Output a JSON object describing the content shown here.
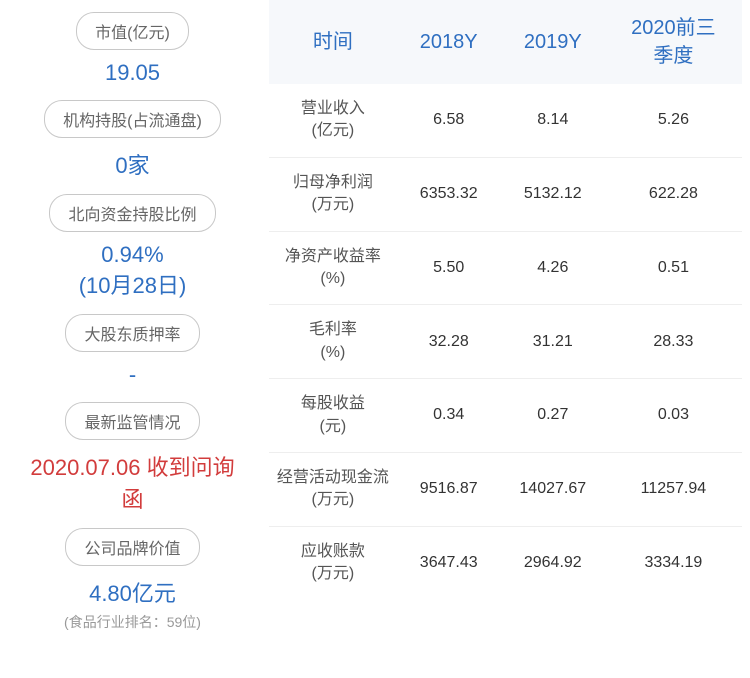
{
  "left": {
    "items": [
      {
        "label": "市值(亿元)",
        "value": "19.05",
        "color": "#2f6fc1",
        "sub": ""
      },
      {
        "label": "机构持股(占流通盘)",
        "value": "0家",
        "color": "#2f6fc1",
        "sub": ""
      },
      {
        "label": "北向资金持股比例",
        "value": "0.94%\n(10月28日)",
        "color": "#2f6fc1",
        "sub": ""
      },
      {
        "label": "大股东质押率",
        "value": "-",
        "color": "#2f6fc1",
        "sub": ""
      },
      {
        "label": "最新监管情况",
        "value": "2020.07.06 收到问询函",
        "color": "#d23c3c",
        "sub": ""
      },
      {
        "label": "公司品牌价值",
        "value": "4.80亿元",
        "color": "#2f6fc1",
        "sub": "(食品行业排名：59位)"
      }
    ]
  },
  "table": {
    "headers": [
      "时间",
      "2018Y",
      "2019Y",
      "2020前三\n季度"
    ],
    "rows": [
      {
        "label": "营业收入\n(亿元)",
        "c1": "6.58",
        "c2": "8.14",
        "c3": "5.26"
      },
      {
        "label": "归母净利润\n(万元)",
        "c1": "6353.32",
        "c2": "5132.12",
        "c3": "622.28"
      },
      {
        "label": "净资产收益率\n(%)",
        "c1": "5.50",
        "c2": "4.26",
        "c3": "0.51"
      },
      {
        "label": "毛利率\n(%)",
        "c1": "32.28",
        "c2": "31.21",
        "c3": "28.33"
      },
      {
        "label": "每股收益\n(元)",
        "c1": "0.34",
        "c2": "0.27",
        "c3": "0.03"
      },
      {
        "label": "经营活动现金流\n(万元)",
        "c1": "9516.87",
        "c2": "14027.67",
        "c3": "11257.94"
      },
      {
        "label": "应收账款\n(万元)",
        "c1": "3647.43",
        "c2": "2964.92",
        "c3": "3334.19"
      }
    ]
  },
  "colors": {
    "header_bg": "#f6f8fb",
    "header_fg": "#2f6fc1",
    "pill_border": "#c8c8c8",
    "pill_fg": "#666666",
    "row_border": "#eeeeee"
  }
}
